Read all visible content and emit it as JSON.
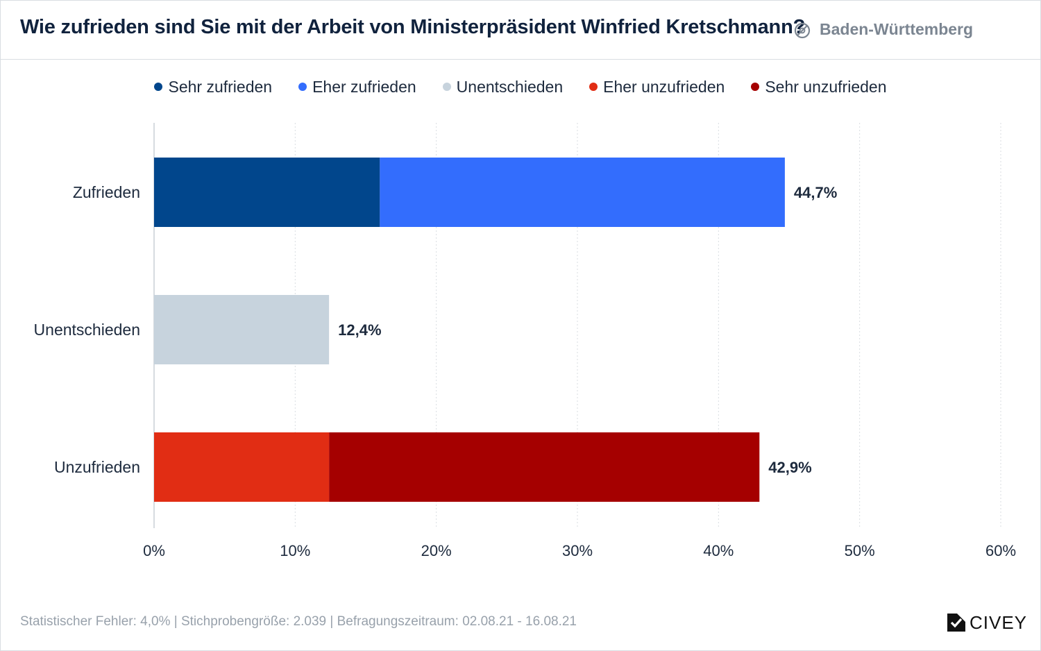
{
  "header": {
    "title": "Wie zufrieden sind Sie mit der Arbeit von Ministerpräsident Winfried Kretschmann?",
    "region": "Baden-Württemberg"
  },
  "legend": [
    {
      "label": "Sehr zufrieden",
      "color": "#01468c"
    },
    {
      "label": "Eher zufrieden",
      "color": "#336dfd"
    },
    {
      "label": "Unentschieden",
      "color": "#c7d3dd"
    },
    {
      "label": "Eher unzufrieden",
      "color": "#e12d14"
    },
    {
      "label": "Sehr unzufrieden",
      "color": "#a50000"
    }
  ],
  "chart_data": {
    "type": "bar",
    "orientation": "horizontal",
    "stacked": true,
    "categories": [
      "Zufrieden",
      "Unentschieden",
      "Unzufrieden"
    ],
    "series": [
      {
        "name": "Sehr zufrieden",
        "color": "#01468c",
        "values": [
          16.0,
          0,
          0
        ]
      },
      {
        "name": "Eher zufrieden",
        "color": "#336dfd",
        "values": [
          28.7,
          0,
          0
        ]
      },
      {
        "name": "Unentschieden",
        "color": "#c7d3dd",
        "values": [
          0,
          12.4,
          0
        ]
      },
      {
        "name": "Eher unzufrieden",
        "color": "#e12d14",
        "values": [
          0,
          0,
          12.4
        ]
      },
      {
        "name": "Sehr unzufrieden",
        "color": "#a50000",
        "values": [
          0,
          0,
          30.5
        ]
      }
    ],
    "totals": [
      "44,7%",
      "12,4%",
      "42,9%"
    ],
    "xlim": [
      0,
      60
    ],
    "xticks": [
      "0%",
      "10%",
      "20%",
      "30%",
      "40%",
      "50%",
      "60%"
    ],
    "grid": true
  },
  "footer": {
    "note": "Statistischer Fehler: 4,0% | Stichprobengröße: 2.039 | Befragungszeitraum: 02.08.21 - 16.08.21",
    "brand": "CIVEY"
  }
}
